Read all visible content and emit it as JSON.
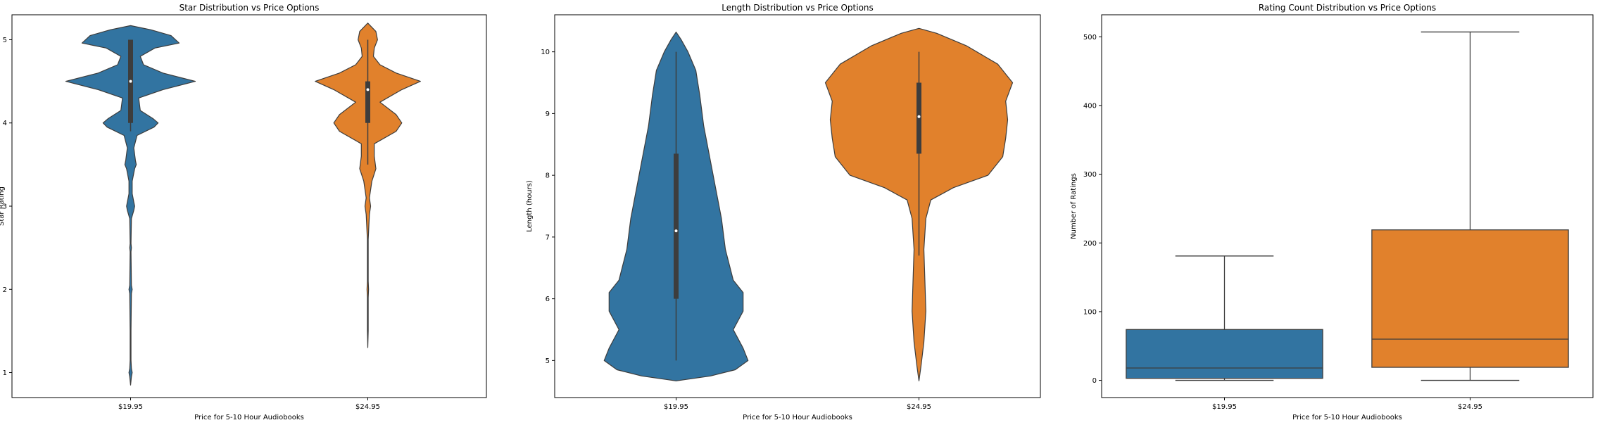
{
  "chart_data": [
    {
      "type": "violin",
      "title": "Star Distribution vs Price Options",
      "xlabel": "Price for 5-10 Hour Audiobooks",
      "ylabel": "Star Rating",
      "categories": [
        "$19.95",
        "$24.95"
      ],
      "ylim": [
        0.7,
        5.3
      ],
      "yticks": [
        1,
        2,
        3,
        4,
        5
      ],
      "colors": [
        "#3274a1",
        "#e1812c"
      ],
      "series": [
        {
          "category": "$19.95",
          "density": [
            [
              0.85,
              0.0
            ],
            [
              0.95,
              0.01
            ],
            [
              1.0,
              0.02
            ],
            [
              1.05,
              0.01
            ],
            [
              1.15,
              0.005
            ],
            [
              1.5,
              0.005
            ],
            [
              1.95,
              0.01
            ],
            [
              2.0,
              0.02
            ],
            [
              2.05,
              0.01
            ],
            [
              2.45,
              0.005
            ],
            [
              2.5,
              0.01
            ],
            [
              2.55,
              0.005
            ],
            [
              2.85,
              0.01
            ],
            [
              2.95,
              0.04
            ],
            [
              3.0,
              0.05
            ],
            [
              3.05,
              0.04
            ],
            [
              3.15,
              0.02
            ],
            [
              3.3,
              0.02
            ],
            [
              3.45,
              0.05
            ],
            [
              3.5,
              0.07
            ],
            [
              3.55,
              0.06
            ],
            [
              3.7,
              0.04
            ],
            [
              3.85,
              0.08
            ],
            [
              3.95,
              0.29
            ],
            [
              4.0,
              0.34
            ],
            [
              4.05,
              0.28
            ],
            [
              4.15,
              0.12
            ],
            [
              4.3,
              0.1
            ],
            [
              4.4,
              0.4
            ],
            [
              4.5,
              0.8
            ],
            [
              4.6,
              0.4
            ],
            [
              4.7,
              0.16
            ],
            [
              4.8,
              0.12
            ],
            [
              4.9,
              0.3
            ],
            [
              4.96,
              0.6
            ],
            [
              5.05,
              0.5
            ],
            [
              5.12,
              0.25
            ],
            [
              5.17,
              0.0
            ]
          ],
          "q1": 4.0,
          "median": 4.5,
          "q3": 5.0,
          "whisker_low": 3.9,
          "whisker_high": 5.0
        },
        {
          "category": "$24.95",
          "density": [
            [
              1.3,
              0.0
            ],
            [
              1.5,
              0.005
            ],
            [
              1.9,
              0.005
            ],
            [
              2.0,
              0.01
            ],
            [
              2.1,
              0.005
            ],
            [
              2.6,
              0.005
            ],
            [
              2.9,
              0.02
            ],
            [
              3.0,
              0.035
            ],
            [
              3.1,
              0.02
            ],
            [
              3.3,
              0.05
            ],
            [
              3.45,
              0.1
            ],
            [
              3.6,
              0.08
            ],
            [
              3.75,
              0.08
            ],
            [
              3.9,
              0.35
            ],
            [
              4.0,
              0.42
            ],
            [
              4.1,
              0.35
            ],
            [
              4.25,
              0.15
            ],
            [
              4.4,
              0.42
            ],
            [
              4.5,
              0.65
            ],
            [
              4.6,
              0.35
            ],
            [
              4.7,
              0.15
            ],
            [
              4.8,
              0.07
            ],
            [
              4.9,
              0.08
            ],
            [
              5.0,
              0.12
            ],
            [
              5.1,
              0.1
            ],
            [
              5.2,
              0.0
            ]
          ],
          "q1": 4.0,
          "median": 4.4,
          "q3": 4.5,
          "whisker_low": 3.5,
          "whisker_high": 5.0
        }
      ]
    },
    {
      "type": "violin",
      "title": "Length Distribution vs Price Options",
      "xlabel": "Price for 5-10 Hour Audiobooks",
      "ylabel": "Length (hours)",
      "categories": [
        "$19.95",
        "$24.95"
      ],
      "ylim": [
        4.4,
        10.6
      ],
      "yticks": [
        5,
        6,
        7,
        8,
        9,
        10
      ],
      "colors": [
        "#3274a1",
        "#e1812c"
      ],
      "series": [
        {
          "category": "$19.95",
          "density": [
            [
              4.67,
              0.0
            ],
            [
              4.75,
              0.35
            ],
            [
              4.85,
              0.6
            ],
            [
              5.0,
              0.73
            ],
            [
              5.2,
              0.68
            ],
            [
              5.5,
              0.58
            ],
            [
              5.8,
              0.68
            ],
            [
              6.1,
              0.68
            ],
            [
              6.3,
              0.58
            ],
            [
              6.8,
              0.5
            ],
            [
              7.3,
              0.46
            ],
            [
              7.8,
              0.4
            ],
            [
              8.3,
              0.34
            ],
            [
              8.8,
              0.28
            ],
            [
              9.3,
              0.24
            ],
            [
              9.7,
              0.2
            ],
            [
              10.0,
              0.12
            ],
            [
              10.2,
              0.05
            ],
            [
              10.32,
              0.0
            ]
          ],
          "q1": 6.0,
          "median": 7.1,
          "q3": 8.35,
          "whisker_low": 5.0,
          "whisker_high": 10.0
        },
        {
          "category": "$24.95",
          "density": [
            [
              4.67,
              0.0
            ],
            [
              4.9,
              0.02
            ],
            [
              5.3,
              0.05
            ],
            [
              5.8,
              0.07
            ],
            [
              6.3,
              0.06
            ],
            [
              6.8,
              0.05
            ],
            [
              7.3,
              0.07
            ],
            [
              7.6,
              0.12
            ],
            [
              7.8,
              0.35
            ],
            [
              8.0,
              0.7
            ],
            [
              8.3,
              0.85
            ],
            [
              8.6,
              0.88
            ],
            [
              8.9,
              0.9
            ],
            [
              9.2,
              0.88
            ],
            [
              9.5,
              0.95
            ],
            [
              9.8,
              0.8
            ],
            [
              10.1,
              0.48
            ],
            [
              10.3,
              0.18
            ],
            [
              10.38,
              0.0
            ]
          ],
          "q1": 8.35,
          "median": 8.95,
          "q3": 9.5,
          "whisker_low": 6.7,
          "whisker_high": 10.0
        }
      ]
    },
    {
      "type": "box",
      "title": "Rating Count Distribution vs Price Options",
      "xlabel": "Price for 5-10 Hour Audiobooks",
      "ylabel": "Number of Ratings",
      "categories": [
        "$19.95",
        "$24.95"
      ],
      "ylim": [
        -25,
        532
      ],
      "yticks": [
        0,
        100,
        200,
        300,
        400,
        500
      ],
      "colors": [
        "#3274a1",
        "#e1812c"
      ],
      "series": [
        {
          "category": "$19.95",
          "whisker_low": 0,
          "q1": 3,
          "median": 18,
          "q3": 74,
          "whisker_high": 181
        },
        {
          "category": "$24.95",
          "whisker_low": 0,
          "q1": 19,
          "median": 60,
          "q3": 219,
          "whisker_high": 507
        }
      ]
    }
  ]
}
